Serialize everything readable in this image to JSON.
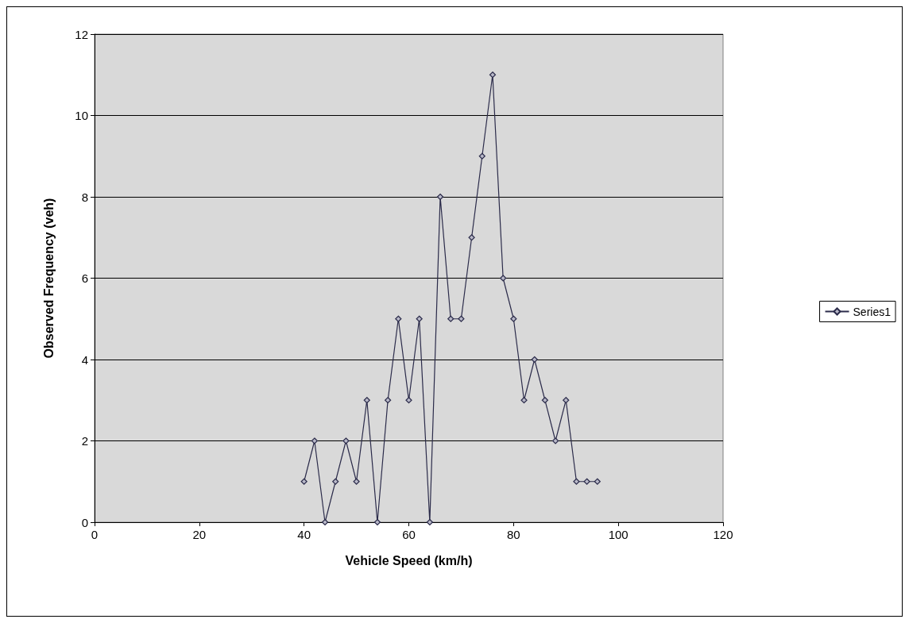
{
  "chart_data": {
    "type": "line",
    "xlabel": "Vehicle Speed (km/h)",
    "ylabel": "Observed Frequency (veh)",
    "x": [
      40,
      42,
      44,
      46,
      48,
      50,
      52,
      54,
      56,
      58,
      60,
      62,
      64,
      66,
      68,
      70,
      72,
      74,
      76,
      78,
      80,
      82,
      84,
      86,
      88,
      90,
      92,
      94,
      96
    ],
    "series": [
      {
        "name": "Series1",
        "color": "#2b2b4a",
        "values": [
          1,
          2,
          0,
          1,
          2,
          1,
          3,
          0,
          3,
          5,
          3,
          5,
          0,
          8,
          5,
          5,
          7,
          9,
          11,
          6,
          5,
          3,
          4,
          3,
          2,
          3,
          1,
          1,
          1
        ]
      }
    ],
    "xlim": [
      0,
      120
    ],
    "xticks": [
      0,
      20,
      40,
      60,
      80,
      100,
      120
    ],
    "ylim": [
      0,
      12
    ],
    "yticks": [
      0,
      2,
      4,
      6,
      8,
      10,
      12
    ],
    "grid": "y",
    "legend": "right",
    "marker": "diamond",
    "line_style": "solid"
  }
}
